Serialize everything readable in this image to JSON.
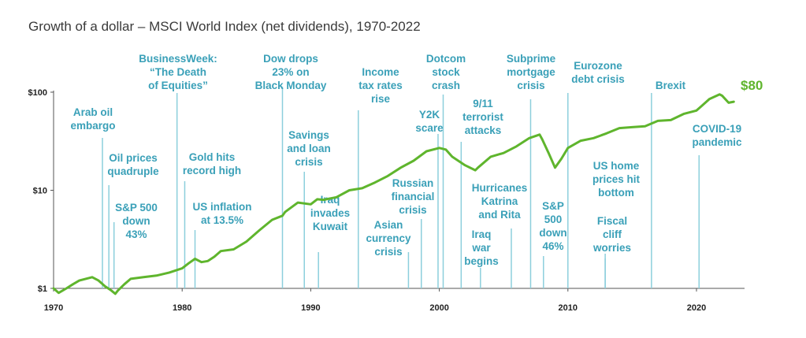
{
  "title": "Growth of a dollar – MSCI World Index (net dividends), 1970-2022",
  "colors": {
    "line": "#5fb52d",
    "annotation": "#3aa0b8",
    "axis": "#555555"
  },
  "chart_data": {
    "type": "line",
    "title": "Growth of a dollar – MSCI World Index (net dividends), 1970-2022",
    "xlabel": "",
    "ylabel": "",
    "yscale": "log",
    "xlim": [
      1970,
      2023
    ],
    "ylim": [
      1,
      100
    ],
    "x_ticks": [
      "1970",
      "1980",
      "1990",
      "2000",
      "2010",
      "2020"
    ],
    "y_ticks": [
      "$1",
      "$10",
      "$100"
    ],
    "end_label": "$80",
    "series": [
      {
        "x": [
          1970,
          1970.4,
          1971,
          1971.5,
          1972,
          1972.5,
          1973,
          1973.5,
          1974,
          1974.5,
          1974.8,
          1975,
          1975.5,
          1976,
          1977,
          1978,
          1979,
          1980,
          1980.5,
          1981,
          1981.5,
          1982,
          1982.5,
          1983,
          1984,
          1985,
          1986,
          1987,
          1987.8,
          1988,
          1989,
          1990,
          1990.5,
          1991,
          1992,
          1993,
          1994,
          1995,
          1996,
          1997,
          1998,
          1999,
          2000,
          2000.5,
          2001,
          2002,
          2002.8,
          2003,
          2004,
          2005,
          2006,
          2007,
          2007.8,
          2008,
          2008.5,
          2009,
          2009.5,
          2010,
          2011,
          2012,
          2013,
          2014,
          2015,
          2016,
          2017,
          2018,
          2019,
          2020,
          2021,
          2021.8,
          2022,
          2022.5,
          2022.9
        ],
        "y": [
          1.0,
          0.9,
          1.0,
          1.1,
          1.2,
          1.25,
          1.3,
          1.2,
          1.05,
          0.95,
          0.88,
          0.95,
          1.1,
          1.25,
          1.3,
          1.35,
          1.45,
          1.6,
          1.8,
          2.0,
          1.85,
          1.9,
          2.1,
          2.4,
          2.5,
          3.0,
          3.9,
          5.0,
          5.5,
          6.0,
          7.5,
          7.2,
          8.1,
          8.0,
          8.5,
          10.0,
          10.5,
          12.0,
          14.0,
          17.0,
          20.0,
          25.0,
          27.0,
          26.0,
          22.0,
          18.0,
          16.0,
          17.0,
          22.0,
          24.0,
          28.0,
          34.0,
          37.0,
          33.0,
          24.0,
          17.0,
          21.0,
          27.0,
          32.0,
          34.0,
          38.0,
          43.0,
          44.0,
          45.0,
          51.0,
          52.0,
          60.0,
          65.0,
          85.0,
          95.0,
          92.0,
          78.0,
          80.0
        ]
      }
    ],
    "annotations": [
      {
        "year": 1973.8,
        "text": [
          "Arab oil",
          "embargo"
        ]
      },
      {
        "year": 1974.3,
        "text": [
          "Oil prices",
          "quadruple"
        ]
      },
      {
        "year": 1974.7,
        "text": [
          "S&P 500",
          "down",
          "43%"
        ]
      },
      {
        "year": 1979.6,
        "text": [
          "BusinessWeek:",
          "“The Death",
          "of Equities”"
        ]
      },
      {
        "year": 1980.2,
        "text": [
          "Gold hits",
          "record high"
        ]
      },
      {
        "year": 1981.0,
        "text": [
          "US inflation",
          "at 13.5%"
        ]
      },
      {
        "year": 1987.8,
        "text": [
          "Dow drops",
          "23% on",
          "Black Monday"
        ]
      },
      {
        "year": 1989.5,
        "text": [
          "Savings",
          "and loan",
          "crisis"
        ]
      },
      {
        "year": 1990.6,
        "text": [
          "Iraq",
          "invades",
          "Kuwait"
        ]
      },
      {
        "year": 1993.7,
        "text": [
          "Income",
          "tax rates",
          "rise"
        ]
      },
      {
        "year": 1997.6,
        "text": [
          "Asian",
          "currency",
          "crisis"
        ]
      },
      {
        "year": 1998.6,
        "text": [
          "Russian",
          "financial",
          "crisis"
        ]
      },
      {
        "year": 1999.9,
        "text": [
          "Y2K",
          "scare"
        ]
      },
      {
        "year": 2000.3,
        "text": [
          "Dotcom",
          "stock",
          "crash"
        ]
      },
      {
        "year": 2001.7,
        "text": [
          "9/11",
          "terrorist",
          "attacks"
        ]
      },
      {
        "year": 2003.2,
        "text": [
          "Iraq",
          "war",
          "begins"
        ]
      },
      {
        "year": 2005.6,
        "text": [
          "Hurricanes",
          "Katrina",
          "and Rita"
        ]
      },
      {
        "year": 2007.1,
        "text": [
          "Subprime",
          "mortgage",
          "crisis"
        ]
      },
      {
        "year": 2008.1,
        "text": [
          "S&P",
          "500",
          "down",
          "46%"
        ]
      },
      {
        "year": 2010.0,
        "text": [
          "Eurozone",
          "debt crisis"
        ]
      },
      {
        "year": 2012.9,
        "text": [
          "US home",
          "prices hit",
          "bottom"
        ]
      },
      {
        "year": 2012.9,
        "text": [
          "Fiscal",
          "cliff",
          "worries"
        ]
      },
      {
        "year": 2016.5,
        "text": [
          "Brexit"
        ]
      },
      {
        "year": 2020.2,
        "text": [
          "COVID-19",
          "pandemic"
        ]
      }
    ]
  }
}
